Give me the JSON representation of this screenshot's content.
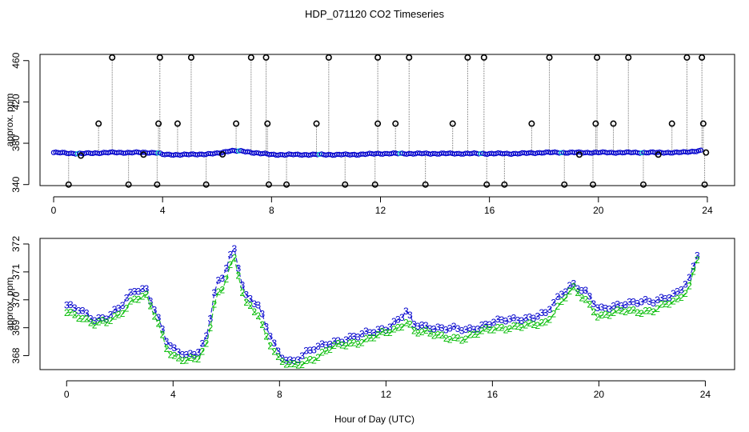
{
  "title": "HDP_071120  CO2 Timeseries",
  "colors": {
    "raw_marker": "#000000",
    "raw_line": "#999999",
    "series_blue": "#0000cc",
    "series_green": "#00bb00",
    "series_cyan": "#00cccc"
  },
  "chart_data": [
    {
      "type": "scatter",
      "xlabel": "",
      "ylabel": "approx. ppm",
      "xlim": [
        -0.5,
        25
      ],
      "ylim": [
        339,
        466
      ],
      "x_ticks": [
        0,
        4,
        8,
        12,
        16,
        20,
        24
      ],
      "y_ticks": [
        340,
        380,
        420,
        460
      ],
      "baseline": {
        "x": [
          0,
          1,
          2,
          3,
          3.8,
          4,
          5,
          6,
          6.5,
          7,
          8,
          9,
          10,
          11,
          12,
          13,
          14,
          15,
          16,
          17,
          18,
          19,
          20,
          21,
          22,
          23,
          23.8
        ],
        "y": [
          371,
          370,
          371,
          371,
          371,
          369,
          369,
          370,
          373,
          372,
          369,
          369,
          369,
          369,
          370,
          370,
          370,
          370,
          370,
          370,
          371,
          371,
          371,
          371,
          371,
          371,
          373
        ]
      },
      "spikes_high": [
        2.15,
        3.9,
        5.05,
        7.25,
        7.8,
        10.1,
        11.9,
        13.05,
        15.2,
        15.8,
        18.2,
        19.95,
        21.1,
        23.25,
        23.8
      ],
      "spikes_mid": [
        1.65,
        3.85,
        4.55,
        6.7,
        7.85,
        9.65,
        11.9,
        12.55,
        14.65,
        17.55,
        19.9,
        20.55,
        22.7,
        23.85
      ],
      "spikes_low": [
        0.55,
        2.75,
        3.8,
        5.6,
        7.9,
        8.55,
        10.7,
        11.8,
        13.65,
        15.9,
        16.55,
        18.75,
        19.8,
        21.65,
        23.9
      ]
    },
    {
      "type": "line",
      "xlabel": "Hour of Day (UTC)",
      "ylabel": "approx. ppm",
      "xlim": [
        -1,
        25.1
      ],
      "ylim": [
        367.5,
        372.2
      ],
      "x_ticks": [
        0,
        4,
        8,
        12,
        16,
        20,
        24
      ],
      "y_ticks": [
        368,
        369,
        370,
        371,
        372
      ],
      "series": [
        {
          "name": "3",
          "x": [
            0,
            0.5,
            1,
            1.5,
            2,
            2.5,
            3,
            3.5,
            3.8,
            4,
            4.5,
            5,
            5.3,
            5.6,
            5.9,
            6.1,
            6.3,
            6.7,
            7.2,
            7.5,
            8,
            8.5,
            9,
            9.5,
            10,
            11,
            12,
            12.5,
            12.8,
            13,
            14,
            15,
            16,
            17,
            18,
            18.6,
            19,
            19.5,
            20,
            21,
            22,
            23,
            23.4,
            23.7
          ],
          "y": [
            369.8,
            369.6,
            369.3,
            369.4,
            369.7,
            370.3,
            370.4,
            369.2,
            368.4,
            368.2,
            368.0,
            368.2,
            368.8,
            370.5,
            370.8,
            371.5,
            371.8,
            370.2,
            369.8,
            369.0,
            368.0,
            367.8,
            368.1,
            368.3,
            368.5,
            368.7,
            369.0,
            369.3,
            369.6,
            369.1,
            369.0,
            368.9,
            369.2,
            369.3,
            369.5,
            370.2,
            370.6,
            370.3,
            369.6,
            369.9,
            369.9,
            370.3,
            370.7,
            371.6
          ]
        },
        {
          "name": "2",
          "x": [
            0,
            0.5,
            1,
            1.5,
            2,
            2.5,
            3,
            3.5,
            3.8,
            4,
            4.5,
            5,
            5.3,
            5.6,
            5.9,
            6.1,
            6.3,
            6.7,
            7.2,
            7.5,
            8,
            8.5,
            9,
            9.5,
            10,
            11,
            12,
            12.5,
            12.8,
            13,
            14,
            15,
            16,
            17,
            18,
            18.6,
            19,
            19.5,
            20,
            21,
            22,
            23,
            23.4,
            23.7
          ],
          "y": [
            369.6,
            369.4,
            369.1,
            369.2,
            369.5,
            370.0,
            370.1,
            369.0,
            368.2,
            368.0,
            367.8,
            367.9,
            368.5,
            370.2,
            370.4,
            371.2,
            371.4,
            369.9,
            369.5,
            368.7,
            367.8,
            367.6,
            367.8,
            368.0,
            368.3,
            368.5,
            368.8,
            369.0,
            369.3,
            368.9,
            368.7,
            368.6,
            369.0,
            369.0,
            369.2,
            369.9,
            370.4,
            370.0,
            369.4,
            369.6,
            369.6,
            370.0,
            370.5,
            371.5
          ]
        }
      ]
    }
  ]
}
